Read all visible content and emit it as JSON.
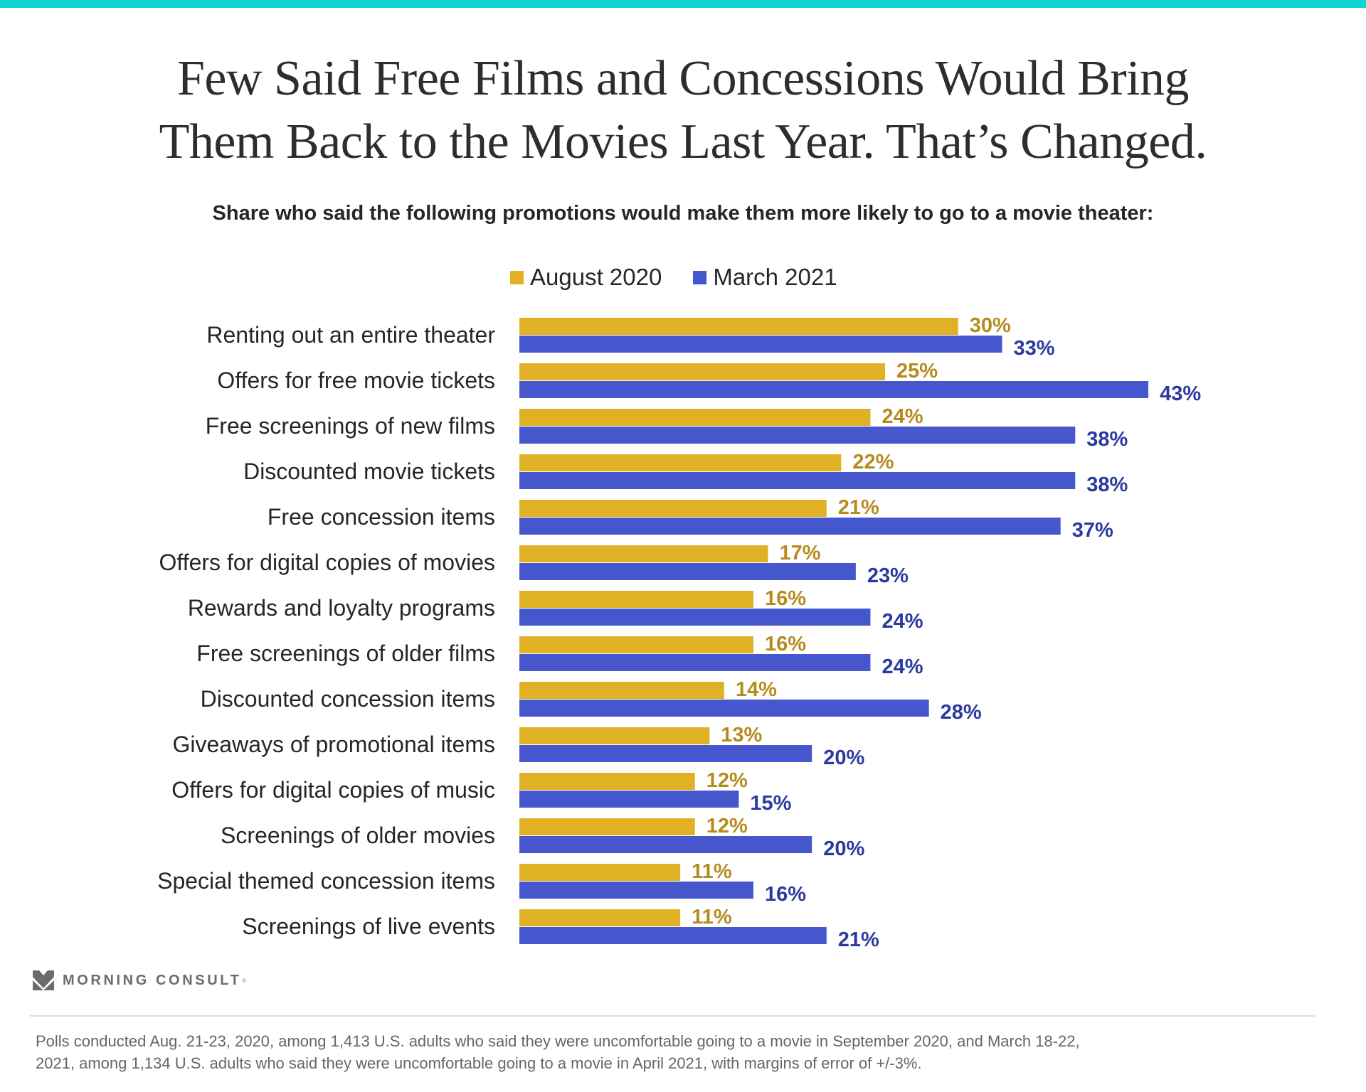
{
  "header": {
    "title_lines": [
      "Few Said Free Films and Concessions Would Bring",
      "Them Back to the Movies Last Year. That’s Changed."
    ],
    "subtitle": "Share who said the following promotions would make them more likely to go to a movie theater:"
  },
  "colors": {
    "accent_bar": "#10d5cc",
    "august_bar": "#e1b125",
    "march_bar": "#4657ce",
    "august_label": "#b68b1e",
    "march_label": "#2b3aa0"
  },
  "chart_data": {
    "type": "bar",
    "orientation": "horizontal",
    "title": "Few Said Free Films and Concessions Would Bring Them Back to the Movies Last Year. That’s Changed.",
    "subtitle": "Share who said the following promotions would make them more likely to go to a movie theater:",
    "xlabel": "",
    "ylabel": "",
    "value_suffix": "%",
    "xlim": [
      0,
      45
    ],
    "grid": false,
    "legend_position": "top-center",
    "categories": [
      "Renting out an entire theater",
      "Offers for free movie tickets",
      "Free screenings of new films",
      "Discounted movie tickets",
      "Free concession items",
      "Offers for digital copies of movies",
      "Rewards and loyalty programs",
      "Free screenings of older films",
      "Discounted concession items",
      "Giveaways of promotional items",
      "Offers for digital copies of music",
      "Screenings of older movies",
      "Special themed concession items",
      "Screenings of live events"
    ],
    "series": [
      {
        "name": "August 2020",
        "color": "#e1b125",
        "label_color": "#b68b1e",
        "values": [
          30,
          25,
          24,
          22,
          21,
          17,
          16,
          16,
          14,
          13,
          12,
          12,
          11,
          11
        ]
      },
      {
        "name": "March 2021",
        "color": "#4657ce",
        "label_color": "#2b3aa0",
        "values": [
          33,
          43,
          38,
          38,
          37,
          23,
          24,
          24,
          28,
          20,
          15,
          20,
          16,
          21
        ]
      }
    ]
  },
  "legend": [
    {
      "label": "August 2020",
      "color": "#e1b125"
    },
    {
      "label": "March 2021",
      "color": "#4657ce"
    }
  ],
  "footer": {
    "logo_text": "MORNING CONSULT",
    "logo_reg": "®",
    "logo_icon": "morning-consult-chevron-icon",
    "footnote_lines": [
      "Polls conducted Aug. 21-23, 2020, among 1,413 U.S. adults who said they were uncomfortable going to a movie in September 2020, and March 18-22,",
      "2021, among 1,134 U.S. adults who said they were uncomfortable going to a movie in April 2021, with margins of error of +/-3%."
    ]
  }
}
